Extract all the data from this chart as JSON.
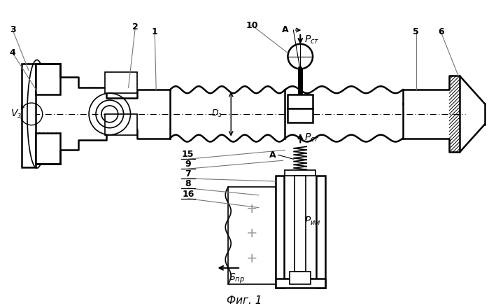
{
  "title": "Фиг. 1",
  "bg": "#ffffff",
  "lc": "#000000",
  "figsize": [
    6.99,
    4.4
  ],
  "dpi": 100
}
